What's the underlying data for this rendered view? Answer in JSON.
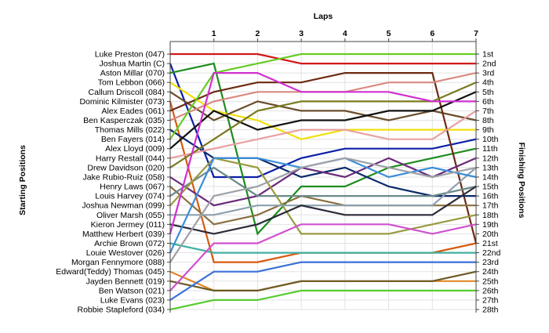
{
  "chart_data": {
    "type": "line",
    "title": "Laps",
    "ylabel_left": "Starting Positions",
    "ylabel_right": "Finishing Positions",
    "x": [
      0,
      1,
      2,
      3,
      4,
      5,
      6,
      7
    ],
    "lap_ticks": [
      "1",
      "2",
      "3",
      "4",
      "5",
      "6",
      "7"
    ],
    "y_reversed": true,
    "positions": [
      1,
      28
    ],
    "grid": true,
    "start_labels": [
      "Luke Preston (047)",
      "Joshua Martin (C)",
      "Aston Millar (070)",
      "Tom Lebbon (066)",
      "Callum Driscoll (084)",
      "Dominic Kilmister (073)",
      "Alex Eades (061)",
      "Ben Kasperczak (035)",
      "Thomas Mills (022)",
      "Ben Fayers (014)",
      "Alex Lloyd (009)",
      "Harry Restall (044)",
      "Drew Davidson (020)",
      "Jake Rubio-Ruiz (058)",
      "Henry Laws (067)",
      "Louis Harvey (074)",
      "Joshua Newman (099)",
      "Oliver Marsh (055)",
      "Kieron Jermey (011)",
      "Matthew Herbert (039)",
      "Archie Brown (072)",
      "Louie Westover (026)",
      "Morgan Fennymore (088)",
      "Edward(Teddy) Thomas (045)",
      "Jayden Bennett (019)",
      "Ben Watson (021)",
      "Luke Evans (023)",
      "Robbie Stapleford (034)"
    ],
    "finish_labels": [
      "1st",
      "2nd",
      "3rd",
      "4th",
      "5th",
      "6th",
      "7th",
      "8th",
      "9th",
      "10th",
      "11th",
      "12th",
      "13th",
      "14th",
      "15th",
      "16th",
      "17th",
      "18th",
      "19th",
      "20th",
      "21st",
      "22nd",
      "23rd",
      "24th",
      "25th",
      "26th",
      "27th",
      "28th"
    ],
    "series": [
      {
        "start": 1,
        "color": "#d01818",
        "positions": [
          1,
          1,
          1,
          2,
          2,
          2,
          2,
          2
        ]
      },
      {
        "start": 2,
        "color": "#0b1fa8",
        "positions": [
          2,
          14,
          14,
          12,
          11,
          11,
          11,
          10
        ]
      },
      {
        "start": 3,
        "color": "#1e8c1e",
        "positions": [
          3,
          2,
          20,
          15,
          15,
          13,
          12,
          11
        ]
      },
      {
        "start": 4,
        "color": "#f0e00a",
        "positions": [
          4,
          7,
          8,
          10,
          9,
          9,
          9,
          9
        ]
      },
      {
        "start": 5,
        "color": "#6a4e2c",
        "positions": [
          5,
          8,
          6,
          7,
          7,
          8,
          7,
          8
        ]
      },
      {
        "start": 6,
        "color": "#d85a10",
        "positions": [
          6,
          23,
          23,
          22,
          22,
          22,
          22,
          21
        ]
      },
      {
        "start": 7,
        "color": "#6b2a12",
        "positions": [
          7,
          5,
          4,
          4,
          3,
          3,
          3,
          21
        ]
      },
      {
        "start": 8,
        "color": "#d88a80",
        "positions": [
          8,
          6,
          5,
          5,
          5,
          4,
          4,
          3
        ]
      },
      {
        "start": 9,
        "color": "#0b2a6a",
        "positions": [
          9,
          12,
          12,
          14,
          13,
          15,
          16,
          16
        ]
      },
      {
        "start": 10,
        "color": "#66cc22",
        "positions": [
          10,
          3,
          2,
          1,
          1,
          1,
          1,
          1
        ]
      },
      {
        "start": 11,
        "color": "#111111",
        "positions": [
          11,
          7,
          9,
          8,
          8,
          7,
          7,
          5
        ]
      },
      {
        "start": 12,
        "color": "#e8a0a0",
        "positions": [
          12,
          11,
          10,
          9,
          9,
          10,
          10,
          7
        ]
      },
      {
        "start": 13,
        "color": "#7a7a20",
        "positions": [
          13,
          10,
          7,
          6,
          6,
          6,
          6,
          4
        ]
      },
      {
        "start": 14,
        "color": "#6a2a7a",
        "positions": [
          14,
          17,
          16,
          13,
          14,
          12,
          14,
          12
        ]
      },
      {
        "start": 15,
        "color": "#8a7040",
        "positions": [
          15,
          19,
          18,
          16,
          17,
          17,
          17,
          17
        ]
      },
      {
        "start": 16,
        "color": "#6a8a8a",
        "positions": [
          16,
          13,
          16,
          16,
          16,
          16,
          16,
          15
        ]
      },
      {
        "start": 17,
        "color": "#9a9a40",
        "positions": [
          17,
          12,
          13,
          20,
          20,
          20,
          19,
          18
        ]
      },
      {
        "start": 18,
        "color": "#8ea0ae",
        "positions": [
          18,
          18,
          17,
          17,
          17,
          17,
          17,
          13
        ]
      },
      {
        "start": 19,
        "color": "#2a2a38",
        "positions": [
          19,
          20,
          19,
          17,
          18,
          18,
          18,
          15
        ]
      },
      {
        "start": 20,
        "color": "#d030d0",
        "positions": [
          20,
          3,
          3,
          5,
          5,
          5,
          6,
          6
        ]
      },
      {
        "start": 21,
        "color": "#40b0a0",
        "positions": [
          21,
          22,
          22,
          22,
          22,
          22,
          22,
          22
        ]
      },
      {
        "start": 22,
        "color": "#3a8ed8",
        "positions": [
          22,
          12,
          12,
          13,
          12,
          14,
          13,
          14
        ]
      },
      {
        "start": 23,
        "color": "#9ea0a8",
        "positions": [
          23,
          16,
          15,
          13,
          12,
          13,
          14,
          13
        ]
      },
      {
        "start": 24,
        "color": "#e08828",
        "positions": [
          24,
          26,
          26,
          25,
          25,
          25,
          25,
          25
        ]
      },
      {
        "start": 25,
        "color": "#6a5a24",
        "positions": [
          25,
          26,
          26,
          25,
          25,
          25,
          25,
          24
        ]
      },
      {
        "start": 26,
        "color": "#d050d0",
        "positions": [
          26,
          21,
          21,
          19,
          19,
          19,
          20,
          19
        ]
      },
      {
        "start": 27,
        "color": "#3a70d8",
        "positions": [
          27,
          24,
          24,
          23,
          23,
          23,
          23,
          23
        ]
      },
      {
        "start": 28,
        "color": "#58cc30",
        "positions": [
          28,
          27,
          27,
          26,
          26,
          26,
          26,
          26
        ]
      }
    ]
  }
}
